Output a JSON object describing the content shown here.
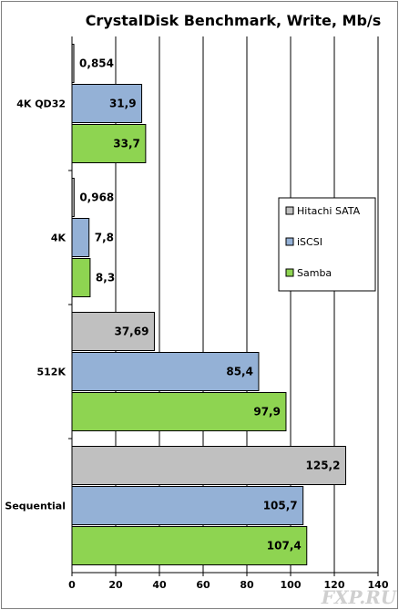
{
  "chart_data": {
    "type": "bar",
    "orientation": "horizontal",
    "title": "CrystalDisk Benchmark, Write, Mb/s",
    "categories": [
      "4K QD32",
      "4K",
      "512K",
      "Sequential"
    ],
    "series": [
      {
        "name": "Hitachi SATA",
        "color": "#c0c0c0",
        "values": [
          0.854,
          0.968,
          37.69,
          125.2
        ],
        "labels": [
          "0,854",
          "0,968",
          "37,69",
          "125,2"
        ]
      },
      {
        "name": "iSCSI",
        "color": "#94b1d6",
        "values": [
          31.9,
          7.8,
          85.4,
          105.7
        ],
        "labels": [
          "31,9",
          "7,8",
          "85,4",
          "105,7"
        ]
      },
      {
        "name": "Samba",
        "color": "#8ed451",
        "values": [
          33.7,
          8.3,
          97.9,
          107.4
        ],
        "labels": [
          "33,7",
          "8,3",
          "97,9",
          "107,4"
        ]
      }
    ],
    "xlim": [
      0,
      140
    ],
    "xticks": [
      0,
      20,
      40,
      60,
      80,
      100,
      120,
      140
    ],
    "xtick_labels": [
      "0",
      "20",
      "40",
      "60",
      "80",
      "100",
      "120",
      "140"
    ],
    "grid": true,
    "legend_position": "right"
  },
  "watermark": "FXP.RU"
}
